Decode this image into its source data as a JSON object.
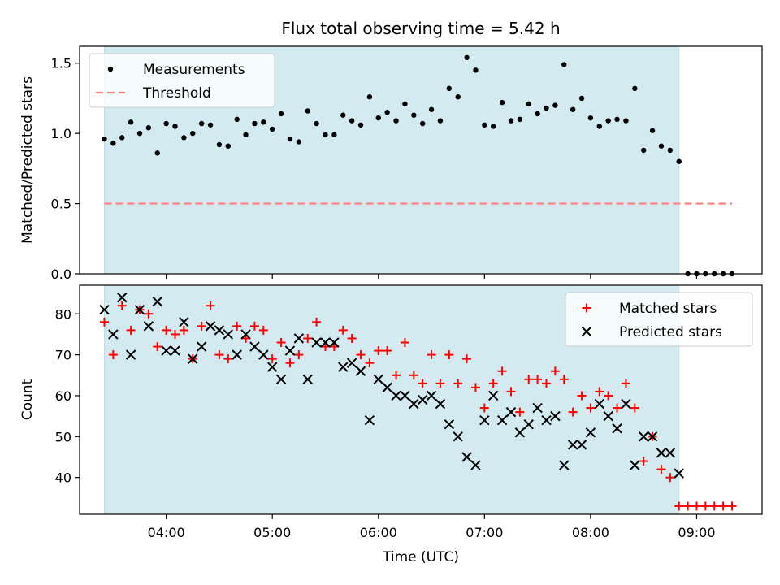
{
  "figure_title": "Flux total observing time = 5.42 h",
  "chart_data": [
    {
      "type": "scatter",
      "ylabel": "Matched/Predicted stars",
      "xlim": [
        "03:11",
        "09:37"
      ],
      "ylim": [
        0,
        1.62
      ],
      "yticks": [
        "0.0",
        "0.5",
        "1.0",
        "1.5"
      ],
      "shaded_span": {
        "start": "03:25",
        "end": "08:50",
        "color": "#d3eaf0"
      },
      "legend": {
        "placement": "top-left",
        "entries": [
          "Measurements",
          "Threshold"
        ]
      },
      "series": [
        {
          "name": "Measurements",
          "marker": "dot",
          "color": "#000000",
          "points": [
            [
              "03:25",
              0.96
            ],
            [
              "03:30",
              0.93
            ],
            [
              "03:35",
              0.97
            ],
            [
              "03:40",
              1.08
            ],
            [
              "03:45",
              1.0
            ],
            [
              "03:50",
              1.04
            ],
            [
              "03:55",
              0.86
            ],
            [
              "04:00",
              1.07
            ],
            [
              "04:05",
              1.05
            ],
            [
              "04:10",
              0.97
            ],
            [
              "04:15",
              1.0
            ],
            [
              "04:20",
              1.07
            ],
            [
              "04:25",
              1.06
            ],
            [
              "04:30",
              0.92
            ],
            [
              "04:35",
              0.91
            ],
            [
              "04:40",
              1.1
            ],
            [
              "04:45",
              0.99
            ],
            [
              "04:50",
              1.07
            ],
            [
              "04:55",
              1.08
            ],
            [
              "05:00",
              1.03
            ],
            [
              "05:05",
              1.14
            ],
            [
              "05:10",
              0.96
            ],
            [
              "05:15",
              0.94
            ],
            [
              "05:20",
              1.16
            ],
            [
              "05:25",
              1.07
            ],
            [
              "05:30",
              0.99
            ],
            [
              "05:35",
              0.99
            ],
            [
              "05:40",
              1.13
            ],
            [
              "05:45",
              1.09
            ],
            [
              "05:50",
              1.06
            ],
            [
              "05:55",
              1.26
            ],
            [
              "06:00",
              1.11
            ],
            [
              "06:05",
              1.15
            ],
            [
              "06:10",
              1.09
            ],
            [
              "06:15",
              1.21
            ],
            [
              "06:20",
              1.13
            ],
            [
              "06:25",
              1.07
            ],
            [
              "06:30",
              1.17
            ],
            [
              "06:35",
              1.09
            ],
            [
              "06:40",
              1.32
            ],
            [
              "06:45",
              1.26
            ],
            [
              "06:50",
              1.54
            ],
            [
              "06:55",
              1.45
            ],
            [
              "07:00",
              1.06
            ],
            [
              "07:05",
              1.05
            ],
            [
              "07:10",
              1.22
            ],
            [
              "07:15",
              1.09
            ],
            [
              "07:20",
              1.1
            ],
            [
              "07:25",
              1.21
            ],
            [
              "07:30",
              1.14
            ],
            [
              "07:35",
              1.18
            ],
            [
              "07:40",
              1.2
            ],
            [
              "07:45",
              1.49
            ],
            [
              "07:50",
              1.17
            ],
            [
              "07:55",
              1.25
            ],
            [
              "08:00",
              1.11
            ],
            [
              "08:05",
              1.05
            ],
            [
              "08:10",
              1.09
            ],
            [
              "08:15",
              1.1
            ],
            [
              "08:20",
              1.09
            ],
            [
              "08:25",
              1.32
            ],
            [
              "08:30",
              0.88
            ],
            [
              "08:35",
              1.02
            ],
            [
              "08:40",
              0.91
            ],
            [
              "08:45",
              0.88
            ],
            [
              "08:50",
              0.8
            ],
            [
              "08:55",
              0.0
            ],
            [
              "09:00",
              0.0
            ],
            [
              "09:05",
              0.0
            ],
            [
              "09:10",
              0.0
            ],
            [
              "09:15",
              0.0
            ],
            [
              "09:20",
              0.0
            ]
          ]
        },
        {
          "name": "Threshold",
          "marker": "dashed-line",
          "color": "#ff7f7f",
          "points": [
            [
              "03:25",
              0.5
            ],
            [
              "09:20",
              0.5
            ]
          ]
        }
      ]
    },
    {
      "type": "scatter",
      "xlabel": "Time (UTC)",
      "ylabel": "Count",
      "xlim": [
        "03:11",
        "09:37"
      ],
      "ylim": [
        31,
        87
      ],
      "yticks": [
        "40",
        "50",
        "60",
        "70",
        "80"
      ],
      "xticks": [
        "04:00",
        "05:00",
        "06:00",
        "07:00",
        "08:00",
        "09:00"
      ],
      "shaded_span": {
        "start": "03:25",
        "end": "08:50",
        "color": "#d3eaf0"
      },
      "legend": {
        "placement": "top-right",
        "entries": [
          "Matched stars",
          "Predicted stars"
        ]
      },
      "series": [
        {
          "name": "Matched stars",
          "marker": "plus",
          "color": "#ff0000",
          "points": [
            [
              "03:25",
              78
            ],
            [
              "03:30",
              70
            ],
            [
              "03:35",
              82
            ],
            [
              "03:40",
              76
            ],
            [
              "03:45",
              81
            ],
            [
              "03:50",
              80
            ],
            [
              "03:55",
              72
            ],
            [
              "04:00",
              76
            ],
            [
              "04:05",
              75
            ],
            [
              "04:10",
              76
            ],
            [
              "04:15",
              69
            ],
            [
              "04:20",
              77
            ],
            [
              "04:25",
              82
            ],
            [
              "04:30",
              70
            ],
            [
              "04:35",
              69
            ],
            [
              "04:40",
              77
            ],
            [
              "04:45",
              74
            ],
            [
              "04:50",
              77
            ],
            [
              "04:55",
              76
            ],
            [
              "05:00",
              69
            ],
            [
              "05:05",
              73
            ],
            [
              "05:10",
              68
            ],
            [
              "05:15",
              70
            ],
            [
              "05:20",
              74
            ],
            [
              "05:25",
              78
            ],
            [
              "05:30",
              72
            ],
            [
              "05:35",
              72
            ],
            [
              "05:40",
              76
            ],
            [
              "05:45",
              74
            ],
            [
              "05:50",
              70
            ],
            [
              "05:55",
              68
            ],
            [
              "06:00",
              71
            ],
            [
              "06:05",
              71
            ],
            [
              "06:10",
              65
            ],
            [
              "06:15",
              73
            ],
            [
              "06:20",
              65
            ],
            [
              "06:25",
              63
            ],
            [
              "06:30",
              70
            ],
            [
              "06:35",
              63
            ],
            [
              "06:40",
              70
            ],
            [
              "06:45",
              63
            ],
            [
              "06:50",
              69
            ],
            [
              "06:55",
              62
            ],
            [
              "07:00",
              57
            ],
            [
              "07:05",
              63
            ],
            [
              "07:10",
              66
            ],
            [
              "07:15",
              61
            ],
            [
              "07:20",
              56
            ],
            [
              "07:25",
              64
            ],
            [
              "07:30",
              64
            ],
            [
              "07:35",
              63
            ],
            [
              "07:40",
              66
            ],
            [
              "07:45",
              64
            ],
            [
              "07:50",
              56
            ],
            [
              "07:55",
              60
            ],
            [
              "08:00",
              57
            ],
            [
              "08:05",
              61
            ],
            [
              "08:10",
              60
            ],
            [
              "08:15",
              57
            ],
            [
              "08:20",
              63
            ],
            [
              "08:25",
              57
            ],
            [
              "08:30",
              44
            ],
            [
              "08:35",
              50
            ],
            [
              "08:40",
              42
            ],
            [
              "08:45",
              40
            ],
            [
              "08:50",
              33
            ],
            [
              "08:55",
              33
            ],
            [
              "09:00",
              33
            ],
            [
              "09:05",
              33
            ],
            [
              "09:10",
              33
            ],
            [
              "09:15",
              33
            ],
            [
              "09:20",
              33
            ]
          ]
        },
        {
          "name": "Predicted stars",
          "marker": "x",
          "color": "#000000",
          "points": [
            [
              "03:25",
              81
            ],
            [
              "03:30",
              75
            ],
            [
              "03:35",
              84
            ],
            [
              "03:40",
              70
            ],
            [
              "03:45",
              81
            ],
            [
              "03:50",
              77
            ],
            [
              "03:55",
              83
            ],
            [
              "04:00",
              71
            ],
            [
              "04:05",
              71
            ],
            [
              "04:10",
              78
            ],
            [
              "04:15",
              69
            ],
            [
              "04:20",
              72
            ],
            [
              "04:25",
              77
            ],
            [
              "04:30",
              76
            ],
            [
              "04:35",
              75
            ],
            [
              "04:40",
              70
            ],
            [
              "04:45",
              75
            ],
            [
              "04:50",
              72
            ],
            [
              "04:55",
              70
            ],
            [
              "05:00",
              67
            ],
            [
              "05:05",
              64
            ],
            [
              "05:10",
              71
            ],
            [
              "05:15",
              74
            ],
            [
              "05:20",
              64
            ],
            [
              "05:25",
              73
            ],
            [
              "05:30",
              73
            ],
            [
              "05:35",
              73
            ],
            [
              "05:40",
              67
            ],
            [
              "05:45",
              68
            ],
            [
              "05:50",
              66
            ],
            [
              "05:55",
              54
            ],
            [
              "06:00",
              64
            ],
            [
              "06:05",
              62
            ],
            [
              "06:10",
              60
            ],
            [
              "06:15",
              60
            ],
            [
              "06:20",
              58
            ],
            [
              "06:25",
              59
            ],
            [
              "06:30",
              60
            ],
            [
              "06:35",
              58
            ],
            [
              "06:40",
              53
            ],
            [
              "06:45",
              50
            ],
            [
              "06:50",
              45
            ],
            [
              "06:55",
              43
            ],
            [
              "07:00",
              54
            ],
            [
              "07:05",
              60
            ],
            [
              "07:10",
              54
            ],
            [
              "07:15",
              56
            ],
            [
              "07:20",
              51
            ],
            [
              "07:25",
              53
            ],
            [
              "07:30",
              57
            ],
            [
              "07:35",
              54
            ],
            [
              "07:40",
              55
            ],
            [
              "07:45",
              43
            ],
            [
              "07:50",
              48
            ],
            [
              "07:55",
              48
            ],
            [
              "08:00",
              51
            ],
            [
              "08:05",
              58
            ],
            [
              "08:10",
              55
            ],
            [
              "08:15",
              52
            ],
            [
              "08:20",
              58
            ],
            [
              "08:25",
              43
            ],
            [
              "08:30",
              50
            ],
            [
              "08:35",
              50
            ],
            [
              "08:40",
              46
            ],
            [
              "08:45",
              46
            ],
            [
              "08:50",
              41
            ]
          ]
        }
      ]
    }
  ]
}
